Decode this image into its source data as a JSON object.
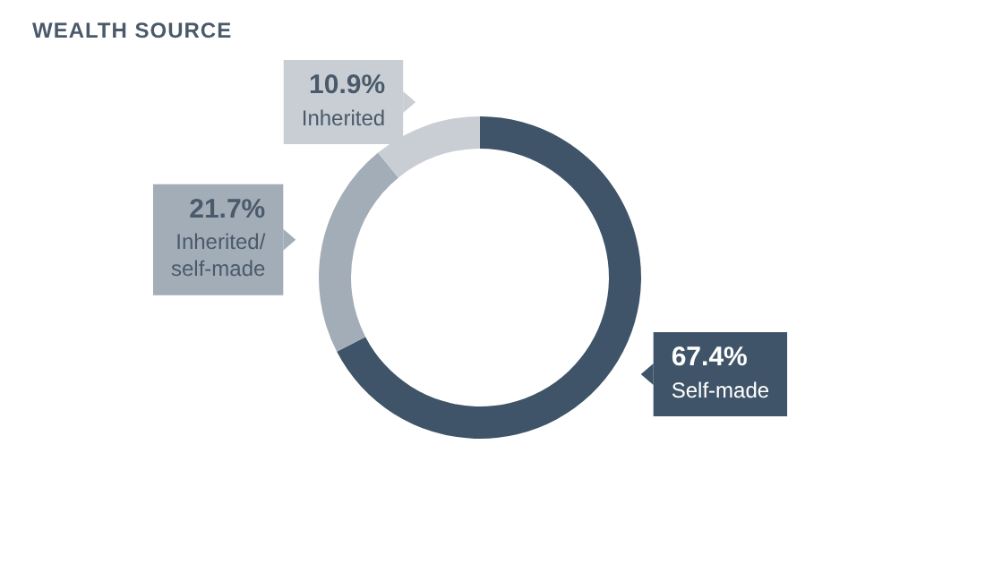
{
  "chart_data": {
    "type": "donut",
    "title": "WEALTH SOURCE",
    "categories": [
      "Self-made",
      "Inherited/self-made",
      "Inherited"
    ],
    "values": [
      67.4,
      21.7,
      10.9
    ],
    "value_labels": [
      "67.4%",
      "21.7%",
      "10.9%"
    ],
    "colors": [
      "#3f5468",
      "#a3adb8",
      "#c9ced4"
    ]
  }
}
